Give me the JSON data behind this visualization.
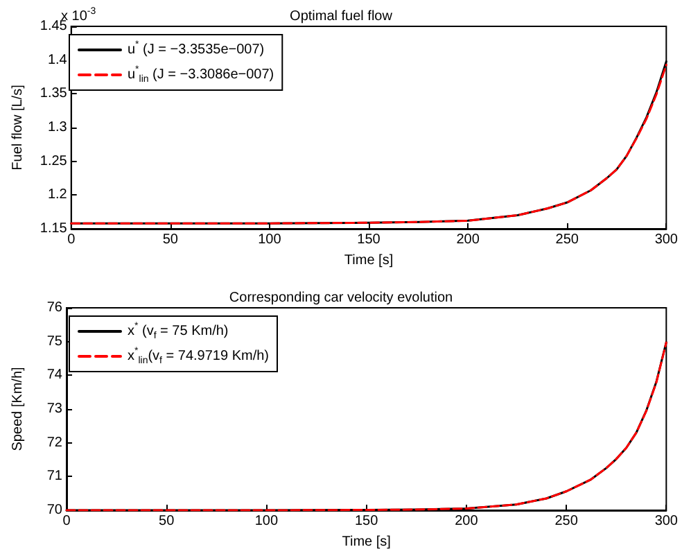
{
  "chart_data": [
    {
      "type": "line",
      "title": "Optimal fuel flow",
      "xlabel": "Time [s]",
      "ylabel": "Fuel flow [L/s]",
      "annotations": [
        "x 10$^{-3}$"
      ],
      "legend": "top left",
      "grid": false,
      "marker": "none",
      "xlim": [
        0,
        300
      ],
      "xticks": [
        0,
        50,
        100,
        150,
        200,
        250,
        300
      ],
      "ylim": [
        1.15,
        1.45
      ],
      "yticks": [
        1.15,
        1.2,
        1.25,
        1.3,
        1.35,
        1.4,
        1.45
      ],
      "x": [
        0,
        50,
        100,
        150,
        175,
        200,
        225,
        240,
        250,
        262,
        270,
        275,
        280,
        285,
        290,
        295,
        300
      ],
      "series": [
        {
          "name": "u$^{*}$ (J = −3.3535e−007)",
          "color": "#000000",
          "line_style": "solid",
          "values": [
            1.158,
            1.158,
            1.158,
            1.159,
            1.16,
            1.162,
            1.17,
            1.18,
            1.189,
            1.207,
            1.225,
            1.238,
            1.258,
            1.285,
            1.315,
            1.352,
            1.398
          ]
        },
        {
          "name": "u$^{*}$$_{lin}$ (J = −3.3086e−007)",
          "color": "#ff0000",
          "line_style": "dashed",
          "values": [
            1.158,
            1.158,
            1.158,
            1.159,
            1.16,
            1.162,
            1.17,
            1.18,
            1.189,
            1.207,
            1.225,
            1.238,
            1.258,
            1.284,
            1.313,
            1.349,
            1.393
          ]
        }
      ]
    },
    {
      "type": "line",
      "title": "Corresponding car velocity evolution",
      "xlabel": "Time [s]",
      "ylabel": "Speed [Km/h]",
      "legend": "top left",
      "grid": false,
      "marker": "none",
      "xlim": [
        0,
        300
      ],
      "xticks": [
        0,
        50,
        100,
        150,
        200,
        250,
        300
      ],
      "ylim": [
        70,
        76
      ],
      "yticks": [
        70,
        71,
        72,
        73,
        74,
        75,
        76
      ],
      "x": [
        0,
        50,
        100,
        150,
        175,
        200,
        225,
        240,
        250,
        262,
        270,
        275,
        280,
        285,
        290,
        295,
        300
      ],
      "series": [
        {
          "name": "x$^{*}$ (v$_{f}$ = 75 Km/h)",
          "color": "#000000",
          "line_style": "solid",
          "values": [
            70,
            70,
            70,
            70.01,
            70.02,
            70.05,
            70.17,
            70.35,
            70.56,
            70.9,
            71.25,
            71.52,
            71.85,
            72.3,
            72.95,
            73.8,
            74.98
          ]
        },
        {
          "name": "x$^{*}$$_{lin}$(v$_{f}$ = 74.9719 Km/h)",
          "color": "#ff0000",
          "line_style": "dashed",
          "values": [
            70,
            70,
            70,
            70.01,
            70.02,
            70.05,
            70.17,
            70.35,
            70.56,
            70.9,
            71.25,
            71.52,
            71.85,
            72.3,
            72.94,
            73.78,
            74.97
          ]
        }
      ]
    }
  ]
}
